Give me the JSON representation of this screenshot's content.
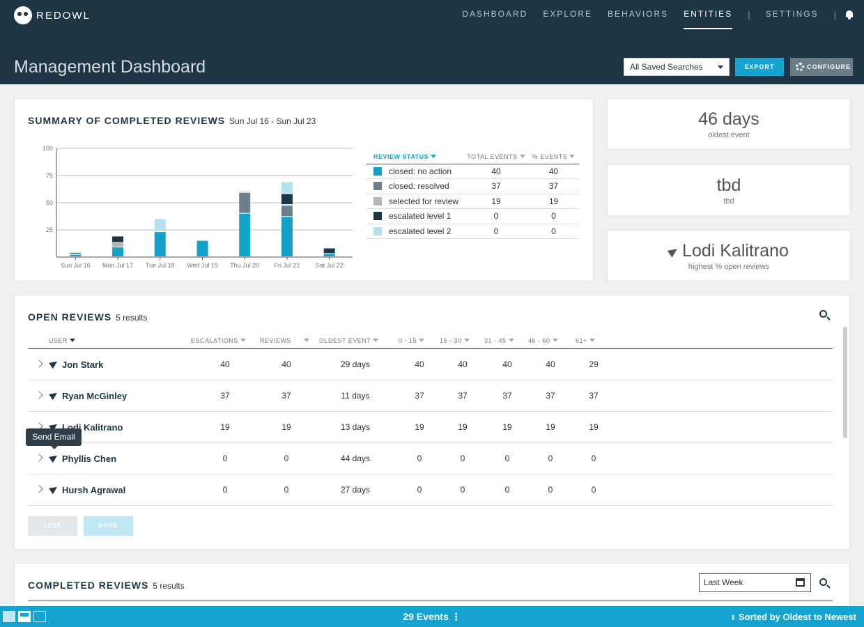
{
  "header": {
    "brand": "REDOWL",
    "nav": [
      "DASHBOARD",
      "EXPLORE",
      "BEHAVIORS",
      "ENTITIES",
      "SETTINGS"
    ],
    "active_nav": "ENTITIES",
    "separator": "|",
    "page_title": "Management Dashboard",
    "saved_searches": "All Saved Searches",
    "export_label": "EXPORT",
    "configure_label": "CONFIGURE"
  },
  "summary": {
    "title": "SUMMARY OF COMPLETED REVIEWS",
    "date_range": "Sun Jul 16 - Sun Jul 23",
    "status_headers": [
      "REVIEW STATUS",
      "TOTAL EVENTS",
      "% EVENTS"
    ],
    "statuses": [
      {
        "label": "closed: no action",
        "total": "40",
        "pct": "40",
        "color": "#15a2c9"
      },
      {
        "label": "closed: resolved",
        "total": "37",
        "pct": "37",
        "color": "#6e7f8c"
      },
      {
        "label": "selected for review",
        "total": "19",
        "pct": "19",
        "color": "#b0b8bf"
      },
      {
        "label": "escalated level 1",
        "total": "0",
        "pct": "0",
        "color": "#1e3544"
      },
      {
        "label": "escalated level 2",
        "total": "0",
        "pct": "0",
        "color": "#b5e2ef"
      }
    ]
  },
  "chart_data": {
    "type": "bar",
    "stacked": true,
    "categories": [
      "Sun Jul 16",
      "Mon Jul 17",
      "Tue Jul 18",
      "Wed Jul 19",
      "Thu Jul 20",
      "Fri Jul 21",
      "Sat Jul 22"
    ],
    "series": [
      {
        "name": "closed: no action",
        "values": [
          2,
          9,
          23,
          15,
          40,
          37,
          3
        ]
      },
      {
        "name": "closed: resolved",
        "values": [
          2,
          0,
          0,
          0,
          19,
          10,
          0
        ]
      },
      {
        "name": "selected for review",
        "values": [
          0,
          4,
          0,
          0,
          1,
          1,
          0
        ]
      },
      {
        "name": "escalated level 1",
        "values": [
          0,
          6,
          0,
          0,
          0,
          10,
          5
        ]
      },
      {
        "name": "escalated level 2",
        "values": [
          0,
          0,
          12,
          0,
          0,
          11,
          0
        ]
      }
    ],
    "yticks": [
      "100",
      "75",
      "50",
      "25"
    ],
    "ylim": [
      0,
      100
    ]
  },
  "stats": [
    {
      "value": "46 days",
      "label": "oldest event"
    },
    {
      "value": "tbd",
      "label": "tbd"
    },
    {
      "value": "Lodi Kalitrano",
      "label": "highest % open reviews"
    }
  ],
  "open_reviews": {
    "title": "OPEN REVIEWS",
    "count": "5 results",
    "columns": [
      "USER",
      "ESCALATIONS",
      "REVIEWS",
      "OLDEST EVENT",
      "0 - 15",
      "16 - 30",
      "31 - 45",
      "46 - 60",
      "61+"
    ],
    "rows": [
      {
        "user": "Jon Stark",
        "escalations": "40",
        "reviews": "40",
        "oldest": "29 days",
        "b1": "40",
        "b2": "40",
        "b3": "40",
        "b4": "40",
        "b5": "29"
      },
      {
        "user": "Ryan McGinley",
        "escalations": "37",
        "reviews": "37",
        "oldest": "11 days",
        "b1": "37",
        "b2": "37",
        "b3": "37",
        "b4": "37",
        "b5": "37"
      },
      {
        "user": "Lodi Kalitrano",
        "escalations": "19",
        "reviews": "19",
        "oldest": "13 days",
        "b1": "19",
        "b2": "19",
        "b3": "19",
        "b4": "19",
        "b5": "19"
      },
      {
        "user": "Phyllis Chen",
        "escalations": "0",
        "reviews": "0",
        "oldest": "44 days",
        "b1": "0",
        "b2": "0",
        "b3": "0",
        "b4": "0",
        "b5": "0"
      },
      {
        "user": "Hursh Agrawal",
        "escalations": "0",
        "reviews": "0",
        "oldest": "27 days",
        "b1": "0",
        "b2": "0",
        "b3": "0",
        "b4": "0",
        "b5": "0"
      }
    ],
    "less_label": "LESS",
    "more_label": "MORE",
    "tooltip": "Send Email"
  },
  "completed_reviews": {
    "title": "COMPLETED REVIEWS",
    "count": "5 results",
    "period": "Last Week"
  },
  "bottombar": {
    "events": "29 Events",
    "sort": "Sorted by Oldest to Newest"
  }
}
